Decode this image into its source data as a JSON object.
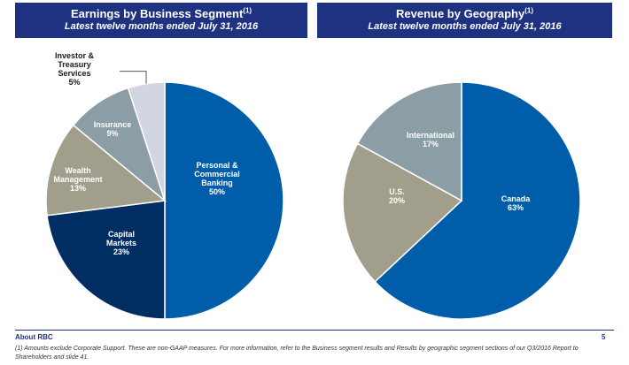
{
  "colors": {
    "header_bg": "#1f3281",
    "personal_commercial": "#005daa",
    "capital_markets": "#002d62",
    "wealth": "#a19e8c",
    "insurance": "#8c9ea5",
    "investor_treasury": "#d2d6e3"
  },
  "chart_data": [
    {
      "type": "pie",
      "title": "Earnings by Business Segment",
      "title_note": "(1)",
      "subtitle": "Latest twelve months ended July 31, 2016",
      "slices": [
        {
          "label_lines": [
            "Personal &",
            "Commercial",
            "Banking"
          ],
          "value_text": "50%",
          "value": 50,
          "color": "#005daa"
        },
        {
          "label_lines": [
            "Capital",
            "Markets"
          ],
          "value_text": "23%",
          "value": 23,
          "color": "#002d62"
        },
        {
          "label_lines": [
            "Wealth",
            "Management"
          ],
          "value_text": "13%",
          "value": 13,
          "color": "#a19e8c"
        },
        {
          "label_lines": [
            "Insurance"
          ],
          "value_text": "9%",
          "value": 9,
          "color": "#8c9ea5"
        },
        {
          "label_lines": [
            "Investor &",
            "Treasury",
            "Services"
          ],
          "value_text": "5%",
          "value": 5,
          "color": "#d2d6e3"
        }
      ]
    },
    {
      "type": "pie",
      "title": "Revenue by Geography",
      "title_note": "(1)",
      "subtitle": "Latest twelve months ended July 31, 2016",
      "slices": [
        {
          "label_lines": [
            "Canada"
          ],
          "value_text": "63%",
          "value": 63,
          "color": "#005daa"
        },
        {
          "label_lines": [
            "U.S."
          ],
          "value_text": "20%",
          "value": 20,
          "color": "#a19e8c"
        },
        {
          "label_lines": [
            "International"
          ],
          "value_text": "17%",
          "value": 17,
          "color": "#8c9ea5"
        }
      ]
    }
  ],
  "footer": {
    "left": "About RBC",
    "page": "5",
    "footnote": "(1) Amounts exclude Corporate Support. These are non-GAAP measures. For more information, refer to the Business segment results and Results by geographic segment sections of our Q3/2016 Report to Shareholders and slide 41."
  }
}
